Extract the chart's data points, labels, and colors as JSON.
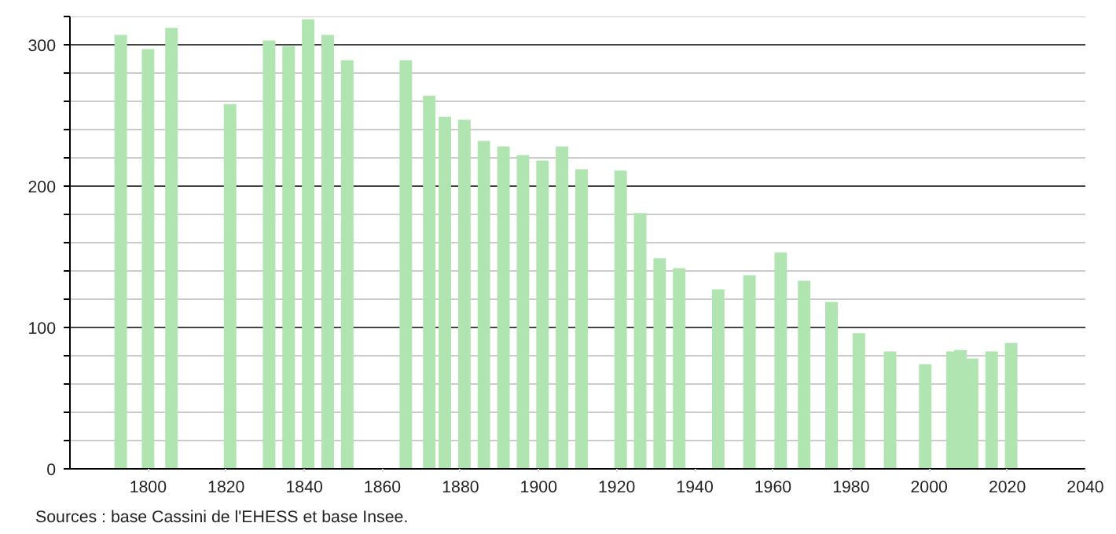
{
  "chart_data": {
    "type": "bar",
    "x": [
      1793,
      1800,
      1806,
      1821,
      1831,
      1836,
      1841,
      1846,
      1851,
      1866,
      1872,
      1876,
      1881,
      1886,
      1891,
      1896,
      1901,
      1906,
      1911,
      1921,
      1926,
      1931,
      1936,
      1946,
      1954,
      1962,
      1968,
      1975,
      1982,
      1990,
      1999,
      2006,
      2008,
      2011,
      2016,
      2021
    ],
    "values": [
      307,
      297,
      312,
      258,
      303,
      299,
      318,
      307,
      289,
      289,
      264,
      249,
      247,
      232,
      228,
      222,
      218,
      228,
      212,
      211,
      181,
      149,
      142,
      127,
      137,
      153,
      133,
      118,
      96,
      83,
      74,
      83,
      84,
      78,
      83,
      89
    ],
    "color": "#b0e4b0",
    "xlim": [
      1780,
      2040
    ],
    "xticks": [
      1800,
      1820,
      1840,
      1860,
      1880,
      1900,
      1920,
      1940,
      1960,
      1980,
      2000,
      2020,
      2040
    ],
    "ylim": [
      0,
      320
    ],
    "yticks": [
      0,
      {
        "value": 20,
        "label": null
      },
      {
        "value": 40,
        "label": null
      },
      {
        "value": 60,
        "label": null
      },
      {
        "value": 80,
        "label": null
      },
      100,
      {
        "value": 120,
        "label": null
      },
      {
        "value": 140,
        "label": null
      },
      {
        "value": 160,
        "label": null
      },
      {
        "value": 180,
        "label": null
      },
      200,
      {
        "value": 220,
        "label": null
      },
      {
        "value": 240,
        "label": null
      },
      {
        "value": 260,
        "label": null
      },
      {
        "value": 280,
        "label": null
      },
      300,
      {
        "value": 320,
        "label": null
      }
    ],
    "grid": "y",
    "annotations": [
      "Sources : base Cassini de l'EHESS et base Insee."
    ]
  }
}
